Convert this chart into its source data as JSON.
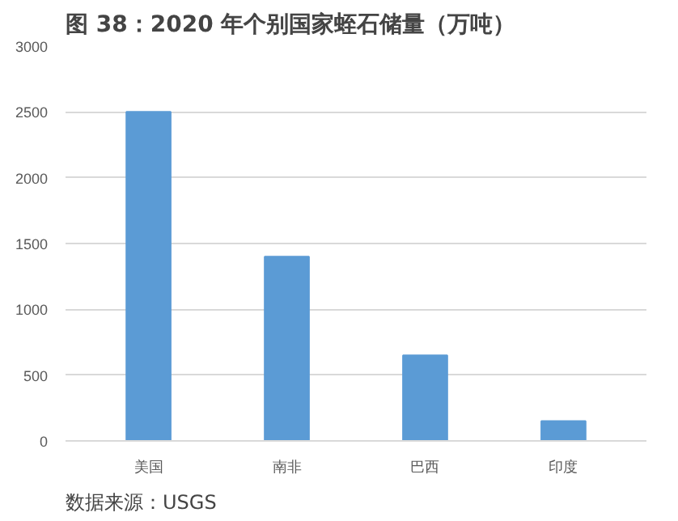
{
  "chart_data": {
    "type": "bar",
    "title": "图 38：2020 年个别国家蛭石储量（万吨）",
    "categories": [
      "美国",
      "南非",
      "巴西",
      "印度"
    ],
    "values": [
      2500,
      1400,
      650,
      150
    ],
    "color": "#5b9bd5",
    "ylim": [
      0,
      3000
    ],
    "yticks": [
      0,
      500,
      1000,
      1500,
      2000,
      2500,
      3000
    ],
    "grid": "y",
    "annotations": [
      "数据来源：USGS"
    ]
  }
}
